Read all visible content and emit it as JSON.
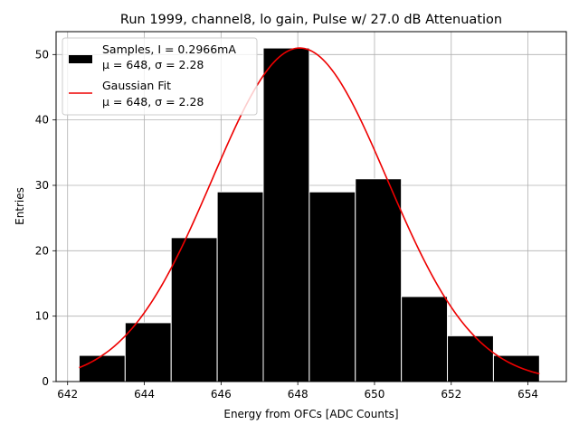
{
  "chart_data": {
    "type": "bar",
    "title": "Run 1999, channel8, lo gain, Pulse w/ 27.0 dB Attenuation",
    "xlabel": "Energy from OFCs [ADC Counts]",
    "ylabel": "Entries",
    "xlim": [
      641.7,
      655.0
    ],
    "ylim": [
      0,
      53.5
    ],
    "xticks": [
      642,
      644,
      646,
      648,
      650,
      652,
      654
    ],
    "yticks": [
      0,
      10,
      20,
      30,
      40,
      50
    ],
    "grid": true,
    "histogram": {
      "name": "Samples, I = 0.2966mA",
      "stats": "μ = 648, σ = 2.28",
      "color": "#000000",
      "edgecolor": "#ffffff",
      "bin_edges": [
        642.3,
        643.5,
        644.7,
        645.9,
        647.1,
        648.3,
        649.5,
        650.7,
        651.9,
        653.1,
        654.3
      ],
      "counts": [
        4,
        9,
        22,
        29,
        51,
        29,
        31,
        13,
        7,
        4
      ]
    },
    "fit": {
      "name": "Gaussian Fit",
      "stats": "μ = 648, σ = 2.28",
      "color": "#ee0000",
      "mu": 648.05,
      "sigma": 2.28,
      "amplitude": 51.0,
      "x_range": [
        642.3,
        654.3
      ]
    },
    "legend": {
      "placement": "upper-left",
      "entries": [
        {
          "label": "Samples, I = 0.2966mA",
          "sublabel": "μ = 648, σ = 2.28",
          "kind": "patch",
          "color": "#000000"
        },
        {
          "label": "Gaussian Fit",
          "sublabel": "μ = 648, σ = 2.28",
          "kind": "line",
          "color": "#ee0000"
        }
      ]
    }
  }
}
